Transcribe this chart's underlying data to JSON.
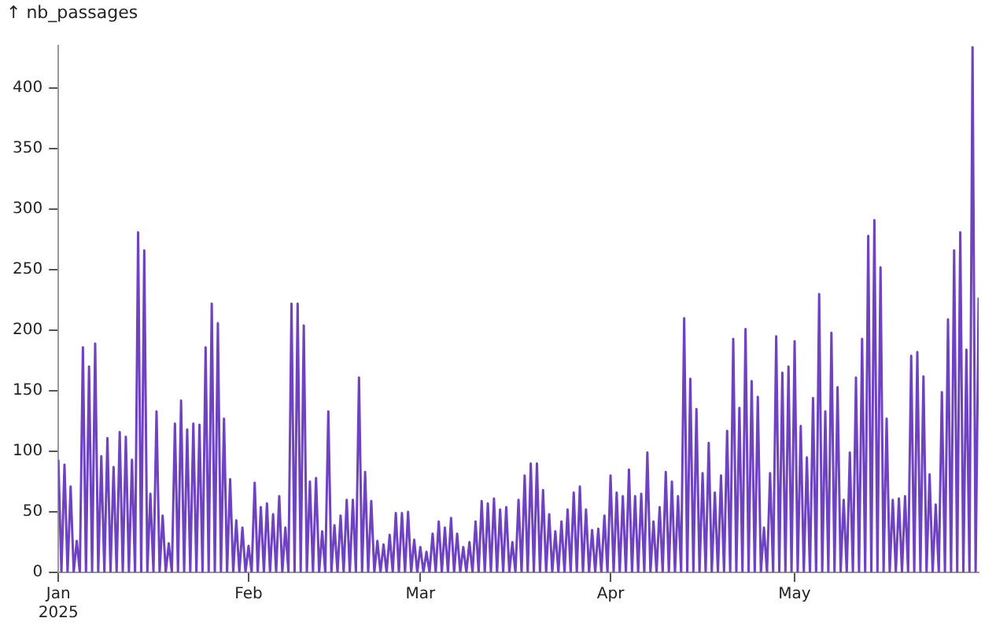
{
  "chart_data": {
    "type": "line",
    "ylabel": "↑ nb_passages",
    "grid": false,
    "legend": false,
    "marker": "none",
    "line_style": "solid",
    "xticks": [
      {
        "value": "2025-01-01",
        "label": "Jan\n2025"
      },
      {
        "value": "2025-02-01",
        "label": "Feb"
      },
      {
        "value": "2025-03-01",
        "label": "Mar"
      },
      {
        "value": "2025-04-01",
        "label": "Apr"
      },
      {
        "value": "2025-05-01",
        "label": "May"
      }
    ],
    "xlim": [
      "2025-01-01",
      "2025-05-31"
    ],
    "ylim": [
      0,
      435
    ],
    "yticks": [
      0,
      50,
      100,
      150,
      200,
      250,
      300,
      350,
      400
    ],
    "x": [
      "2025-01-01",
      "2025-01-01T12:00",
      "2025-01-02",
      "2025-01-02T12:00",
      "2025-01-03",
      "2025-01-03T12:00",
      "2025-01-04",
      "2025-01-04T12:00",
      "2025-01-05",
      "2025-01-05T12:00",
      "2025-01-06",
      "2025-01-06T12:00",
      "2025-01-07",
      "2025-01-07T12:00",
      "2025-01-08",
      "2025-01-08T12:00",
      "2025-01-09",
      "2025-01-09T12:00",
      "2025-01-10",
      "2025-01-10T12:00",
      "2025-01-11",
      "2025-01-11T12:00",
      "2025-01-12",
      "2025-01-12T12:00",
      "2025-01-13",
      "2025-01-13T12:00",
      "2025-01-14",
      "2025-01-14T12:00",
      "2025-01-15",
      "2025-01-15T12:00",
      "2025-01-16",
      "2025-01-16T12:00",
      "2025-01-17",
      "2025-01-17T12:00",
      "2025-01-18",
      "2025-01-18T12:00",
      "2025-01-19",
      "2025-01-19T12:00",
      "2025-01-20",
      "2025-01-20T12:00",
      "2025-01-21",
      "2025-01-21T12:00",
      "2025-01-22",
      "2025-01-22T12:00",
      "2025-01-23",
      "2025-01-23T12:00",
      "2025-01-24",
      "2025-01-24T12:00",
      "2025-01-25",
      "2025-01-25T12:00",
      "2025-01-26",
      "2025-01-26T12:00",
      "2025-01-27",
      "2025-01-27T12:00",
      "2025-01-28",
      "2025-01-28T12:00",
      "2025-01-29",
      "2025-01-29T12:00",
      "2025-01-30",
      "2025-01-30T12:00",
      "2025-01-31",
      "2025-01-31T12:00",
      "2025-02-01",
      "2025-02-01T12:00",
      "2025-02-02",
      "2025-02-02T12:00",
      "2025-02-03",
      "2025-02-03T12:00",
      "2025-02-04",
      "2025-02-04T12:00",
      "2025-02-05",
      "2025-02-05T12:00",
      "2025-02-06",
      "2025-02-06T12:00",
      "2025-02-07",
      "2025-02-07T12:00",
      "2025-02-08",
      "2025-02-08T12:00",
      "2025-02-09",
      "2025-02-09T12:00",
      "2025-02-10",
      "2025-02-10T12:00",
      "2025-02-11",
      "2025-02-11T12:00",
      "2025-02-12",
      "2025-02-12T12:00",
      "2025-02-13",
      "2025-02-13T12:00",
      "2025-02-14",
      "2025-02-14T12:00",
      "2025-02-15",
      "2025-02-15T12:00",
      "2025-02-16",
      "2025-02-16T12:00",
      "2025-02-17",
      "2025-02-17T12:00",
      "2025-02-18",
      "2025-02-18T12:00",
      "2025-02-19",
      "2025-02-19T12:00",
      "2025-02-20",
      "2025-02-20T12:00",
      "2025-02-21",
      "2025-02-21T12:00",
      "2025-02-22",
      "2025-02-22T12:00",
      "2025-02-23",
      "2025-02-23T12:00",
      "2025-02-24",
      "2025-02-24T12:00",
      "2025-02-25",
      "2025-02-25T12:00",
      "2025-02-26",
      "2025-02-26T12:00",
      "2025-02-27",
      "2025-02-27T12:00",
      "2025-02-28",
      "2025-02-28T12:00",
      "2025-03-01",
      "2025-03-01T12:00",
      "2025-03-02",
      "2025-03-02T12:00",
      "2025-03-03",
      "2025-03-03T12:00",
      "2025-03-04",
      "2025-03-04T12:00",
      "2025-03-05",
      "2025-03-05T12:00",
      "2025-03-06",
      "2025-03-06T12:00",
      "2025-03-07",
      "2025-03-07T12:00",
      "2025-03-08",
      "2025-03-08T12:00",
      "2025-03-09",
      "2025-03-09T12:00",
      "2025-03-10",
      "2025-03-10T12:00",
      "2025-03-11",
      "2025-03-11T12:00",
      "2025-03-12",
      "2025-03-12T12:00",
      "2025-03-13",
      "2025-03-13T12:00",
      "2025-03-14",
      "2025-03-14T12:00",
      "2025-03-15",
      "2025-03-15T12:00",
      "2025-03-16",
      "2025-03-16T12:00",
      "2025-03-17",
      "2025-03-17T12:00",
      "2025-03-18",
      "2025-03-18T12:00",
      "2025-03-19",
      "2025-03-19T12:00",
      "2025-03-20",
      "2025-03-20T12:00",
      "2025-03-21",
      "2025-03-21T12:00",
      "2025-03-22",
      "2025-03-22T12:00",
      "2025-03-23",
      "2025-03-23T12:00",
      "2025-03-24",
      "2025-03-24T12:00",
      "2025-03-25",
      "2025-03-25T12:00",
      "2025-03-26",
      "2025-03-26T12:00",
      "2025-03-27",
      "2025-03-27T12:00",
      "2025-03-28",
      "2025-03-28T12:00",
      "2025-03-29",
      "2025-03-29T12:00",
      "2025-03-30",
      "2025-03-30T12:00",
      "2025-03-31",
      "2025-03-31T12:00",
      "2025-04-01",
      "2025-04-01T12:00",
      "2025-04-02",
      "2025-04-02T12:00",
      "2025-04-03",
      "2025-04-03T12:00",
      "2025-04-04",
      "2025-04-04T12:00",
      "2025-04-05",
      "2025-04-05T12:00",
      "2025-04-06",
      "2025-04-06T12:00",
      "2025-04-07",
      "2025-04-07T12:00",
      "2025-04-08",
      "2025-04-08T12:00",
      "2025-04-09",
      "2025-04-09T12:00",
      "2025-04-10",
      "2025-04-10T12:00",
      "2025-04-11",
      "2025-04-11T12:00",
      "2025-04-12",
      "2025-04-12T12:00",
      "2025-04-13",
      "2025-04-13T12:00",
      "2025-04-14",
      "2025-04-14T12:00",
      "2025-04-15",
      "2025-04-15T12:00",
      "2025-04-16",
      "2025-04-16T12:00",
      "2025-04-17",
      "2025-04-17T12:00",
      "2025-04-18",
      "2025-04-18T12:00",
      "2025-04-19",
      "2025-04-19T12:00",
      "2025-04-20",
      "2025-04-20T12:00",
      "2025-04-21",
      "2025-04-21T12:00",
      "2025-04-22",
      "2025-04-22T12:00",
      "2025-04-23",
      "2025-04-23T12:00",
      "2025-04-24",
      "2025-04-24T12:00",
      "2025-04-25",
      "2025-04-25T12:00",
      "2025-04-26",
      "2025-04-26T12:00",
      "2025-04-27",
      "2025-04-27T12:00",
      "2025-04-28",
      "2025-04-28T12:00",
      "2025-04-29",
      "2025-04-29T12:00",
      "2025-04-30",
      "2025-04-30T12:00",
      "2025-05-01",
      "2025-05-01T12:00",
      "2025-05-02",
      "2025-05-02T12:00",
      "2025-05-03",
      "2025-05-03T12:00",
      "2025-05-04",
      "2025-05-04T12:00",
      "2025-05-05",
      "2025-05-05T12:00",
      "2025-05-06",
      "2025-05-06T12:00",
      "2025-05-07",
      "2025-05-07T12:00",
      "2025-05-08",
      "2025-05-08T12:00",
      "2025-05-09",
      "2025-05-09T12:00",
      "2025-05-10",
      "2025-05-10T12:00",
      "2025-05-11",
      "2025-05-11T12:00",
      "2025-05-12",
      "2025-05-12T12:00",
      "2025-05-13",
      "2025-05-13T12:00",
      "2025-05-14",
      "2025-05-14T12:00",
      "2025-05-15",
      "2025-05-15T12:00",
      "2025-05-16",
      "2025-05-16T12:00",
      "2025-05-17",
      "2025-05-17T12:00",
      "2025-05-18",
      "2025-05-18T12:00",
      "2025-05-19",
      "2025-05-19T12:00",
      "2025-05-20",
      "2025-05-20T12:00",
      "2025-05-21",
      "2025-05-21T12:00",
      "2025-05-22",
      "2025-05-22T12:00",
      "2025-05-23",
      "2025-05-23T12:00",
      "2025-05-24",
      "2025-05-24T12:00",
      "2025-05-25",
      "2025-05-25T12:00",
      "2025-05-26",
      "2025-05-26T12:00",
      "2025-05-27",
      "2025-05-27T12:00",
      "2025-05-28",
      "2025-05-28T12:00",
      "2025-05-29",
      "2025-05-29T12:00",
      "2025-05-30",
      "2025-05-30T12:00",
      "2025-05-31"
    ],
    "series": [
      {
        "color": "#6f42c1",
        "values": [
          93,
          0,
          89,
          0,
          71,
          0,
          26,
          0,
          186,
          0,
          170,
          0,
          189,
          0,
          96,
          0,
          111,
          0,
          87,
          0,
          116,
          0,
          112,
          0,
          93,
          0,
          281,
          0,
          266,
          0,
          65,
          0,
          133,
          0,
          47,
          0,
          24,
          0,
          123,
          0,
          142,
          0,
          118,
          0,
          123,
          0,
          122,
          0,
          186,
          0,
          222,
          0,
          206,
          0,
          127,
          0,
          77,
          0,
          43,
          0,
          37,
          0,
          22,
          0,
          74,
          0,
          54,
          0,
          57,
          0,
          48,
          0,
          63,
          0,
          37,
          0,
          222,
          0,
          222,
          0,
          204,
          0,
          75,
          0,
          78,
          0,
          34,
          0,
          133,
          0,
          39,
          0,
          47,
          0,
          60,
          0,
          60,
          0,
          161,
          0,
          83,
          0,
          59,
          0,
          26,
          0,
          23,
          0,
          31,
          0,
          49,
          0,
          49,
          0,
          50,
          0,
          27,
          0,
          21,
          0,
          17,
          0,
          32,
          0,
          42,
          0,
          37,
          0,
          45,
          0,
          32,
          0,
          21,
          0,
          25,
          0,
          42,
          0,
          59,
          0,
          57,
          0,
          61,
          0,
          52,
          0,
          54,
          0,
          25,
          0,
          60,
          0,
          80,
          0,
          90,
          0,
          90,
          0,
          68,
          0,
          48,
          0,
          34,
          0,
          42,
          0,
          52,
          0,
          66,
          0,
          71,
          0,
          52,
          0,
          35,
          0,
          36,
          0,
          47,
          0,
          80,
          0,
          66,
          0,
          63,
          0,
          85,
          0,
          63,
          0,
          65,
          0,
          99,
          0,
          42,
          0,
          54,
          0,
          83,
          0,
          75,
          0,
          63,
          0,
          210,
          0,
          160,
          0,
          135,
          0,
          82,
          0,
          107,
          0,
          66,
          0,
          80,
          0,
          117,
          0,
          193,
          0,
          136,
          0,
          201,
          0,
          158,
          0,
          145,
          0,
          37,
          0,
          82,
          0,
          195,
          0,
          165,
          0,
          170,
          0,
          191,
          0,
          121,
          0,
          95,
          0,
          144,
          0,
          230,
          0,
          133,
          0,
          198,
          0,
          153,
          0,
          60,
          0,
          99,
          0,
          161,
          0,
          193,
          0,
          278,
          0,
          291,
          0,
          252,
          0,
          127,
          0,
          60,
          0,
          61,
          0,
          63,
          0,
          179,
          0,
          182,
          0,
          162,
          0,
          81,
          0,
          56,
          0,
          149,
          0,
          209,
          0,
          266,
          0,
          281,
          0,
          184,
          0,
          434,
          0,
          227
        ]
      }
    ]
  }
}
